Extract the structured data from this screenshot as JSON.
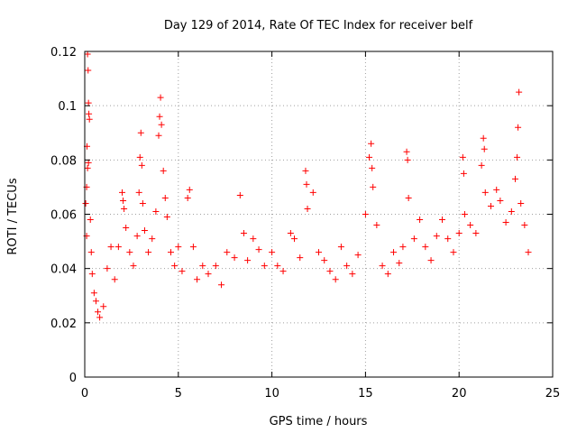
{
  "chart_data": {
    "type": "scatter",
    "title": "Day 129 of 2014, Rate Of TEC Index for receiver belf",
    "xlabel": "GPS time / hours",
    "ylabel": "ROTI / TECUs",
    "xlim": [
      0,
      25
    ],
    "ylim": [
      0,
      0.12
    ],
    "x_ticks": [
      0,
      5,
      10,
      15,
      20,
      25
    ],
    "x_tick_labels": [
      "0",
      "5",
      "10",
      "15",
      "20",
      "25"
    ],
    "y_ticks": [
      0,
      0.02,
      0.04,
      0.06,
      0.08,
      0.1,
      0.12
    ],
    "y_tick_labels": [
      "0",
      "0.02",
      "0.04",
      "0.06",
      "0.08",
      "0.1",
      "0.12"
    ],
    "grid": true,
    "marker": "+",
    "marker_color": "#ff0000",
    "series": [
      {
        "name": "ROTI",
        "points": [
          [
            0.05,
            0.064
          ],
          [
            0.1,
            0.052
          ],
          [
            0.15,
            0.119
          ],
          [
            0.18,
            0.113
          ],
          [
            0.2,
            0.101
          ],
          [
            0.22,
            0.097
          ],
          [
            0.25,
            0.095
          ],
          [
            0.12,
            0.085
          ],
          [
            0.2,
            0.079
          ],
          [
            0.15,
            0.077
          ],
          [
            0.1,
            0.07
          ],
          [
            0.3,
            0.058
          ],
          [
            0.35,
            0.046
          ],
          [
            0.4,
            0.038
          ],
          [
            0.5,
            0.031
          ],
          [
            0.6,
            0.028
          ],
          [
            0.7,
            0.024
          ],
          [
            0.8,
            0.022
          ],
          [
            1.0,
            0.026
          ],
          [
            1.2,
            0.04
          ],
          [
            1.4,
            0.048
          ],
          [
            1.6,
            0.036
          ],
          [
            1.8,
            0.048
          ],
          [
            2.0,
            0.068
          ],
          [
            2.05,
            0.065
          ],
          [
            2.1,
            0.062
          ],
          [
            2.2,
            0.055
          ],
          [
            2.4,
            0.046
          ],
          [
            2.6,
            0.041
          ],
          [
            2.8,
            0.052
          ],
          [
            2.9,
            0.068
          ],
          [
            2.95,
            0.081
          ],
          [
            3.0,
            0.09
          ],
          [
            3.05,
            0.078
          ],
          [
            3.1,
            0.064
          ],
          [
            3.2,
            0.054
          ],
          [
            3.4,
            0.046
          ],
          [
            3.6,
            0.051
          ],
          [
            3.8,
            0.061
          ],
          [
            3.95,
            0.089
          ],
          [
            4.0,
            0.096
          ],
          [
            4.05,
            0.103
          ],
          [
            4.1,
            0.093
          ],
          [
            4.2,
            0.076
          ],
          [
            4.3,
            0.066
          ],
          [
            4.4,
            0.059
          ],
          [
            4.6,
            0.046
          ],
          [
            4.8,
            0.041
          ],
          [
            5.0,
            0.048
          ],
          [
            5.2,
            0.039
          ],
          [
            5.5,
            0.066
          ],
          [
            5.6,
            0.069
          ],
          [
            5.8,
            0.048
          ],
          [
            6.0,
            0.036
          ],
          [
            6.3,
            0.041
          ],
          [
            6.6,
            0.038
          ],
          [
            7.0,
            0.041
          ],
          [
            7.3,
            0.034
          ],
          [
            7.6,
            0.046
          ],
          [
            8.0,
            0.044
          ],
          [
            8.3,
            0.067
          ],
          [
            8.5,
            0.053
          ],
          [
            8.7,
            0.043
          ],
          [
            9.0,
            0.051
          ],
          [
            9.3,
            0.047
          ],
          [
            9.6,
            0.041
          ],
          [
            10.0,
            0.046
          ],
          [
            10.3,
            0.041
          ],
          [
            10.6,
            0.039
          ],
          [
            11.0,
            0.053
          ],
          [
            11.2,
            0.051
          ],
          [
            11.5,
            0.044
          ],
          [
            11.8,
            0.076
          ],
          [
            11.85,
            0.071
          ],
          [
            11.9,
            0.062
          ],
          [
            12.2,
            0.068
          ],
          [
            12.5,
            0.046
          ],
          [
            12.8,
            0.043
          ],
          [
            13.1,
            0.039
          ],
          [
            13.4,
            0.036
          ],
          [
            13.7,
            0.048
          ],
          [
            14.0,
            0.041
          ],
          [
            14.3,
            0.038
          ],
          [
            14.6,
            0.045
          ],
          [
            15.0,
            0.06
          ],
          [
            15.2,
            0.081
          ],
          [
            15.3,
            0.086
          ],
          [
            15.35,
            0.077
          ],
          [
            15.4,
            0.07
          ],
          [
            15.6,
            0.056
          ],
          [
            15.9,
            0.041
          ],
          [
            16.2,
            0.038
          ],
          [
            16.5,
            0.046
          ],
          [
            16.8,
            0.042
          ],
          [
            17.0,
            0.048
          ],
          [
            17.2,
            0.083
          ],
          [
            17.25,
            0.08
          ],
          [
            17.3,
            0.066
          ],
          [
            17.6,
            0.051
          ],
          [
            17.9,
            0.058
          ],
          [
            18.2,
            0.048
          ],
          [
            18.5,
            0.043
          ],
          [
            18.8,
            0.052
          ],
          [
            19.1,
            0.058
          ],
          [
            19.4,
            0.051
          ],
          [
            19.7,
            0.046
          ],
          [
            20.0,
            0.053
          ],
          [
            20.2,
            0.081
          ],
          [
            20.25,
            0.075
          ],
          [
            20.3,
            0.06
          ],
          [
            20.6,
            0.056
          ],
          [
            20.9,
            0.053
          ],
          [
            21.2,
            0.078
          ],
          [
            21.3,
            0.088
          ],
          [
            21.35,
            0.084
          ],
          [
            21.4,
            0.068
          ],
          [
            21.7,
            0.063
          ],
          [
            22.0,
            0.069
          ],
          [
            22.2,
            0.065
          ],
          [
            22.5,
            0.057
          ],
          [
            22.8,
            0.061
          ],
          [
            23.0,
            0.073
          ],
          [
            23.1,
            0.081
          ],
          [
            23.15,
            0.092
          ],
          [
            23.2,
            0.105
          ],
          [
            23.3,
            0.064
          ],
          [
            23.5,
            0.056
          ],
          [
            23.7,
            0.046
          ]
        ]
      }
    ]
  }
}
